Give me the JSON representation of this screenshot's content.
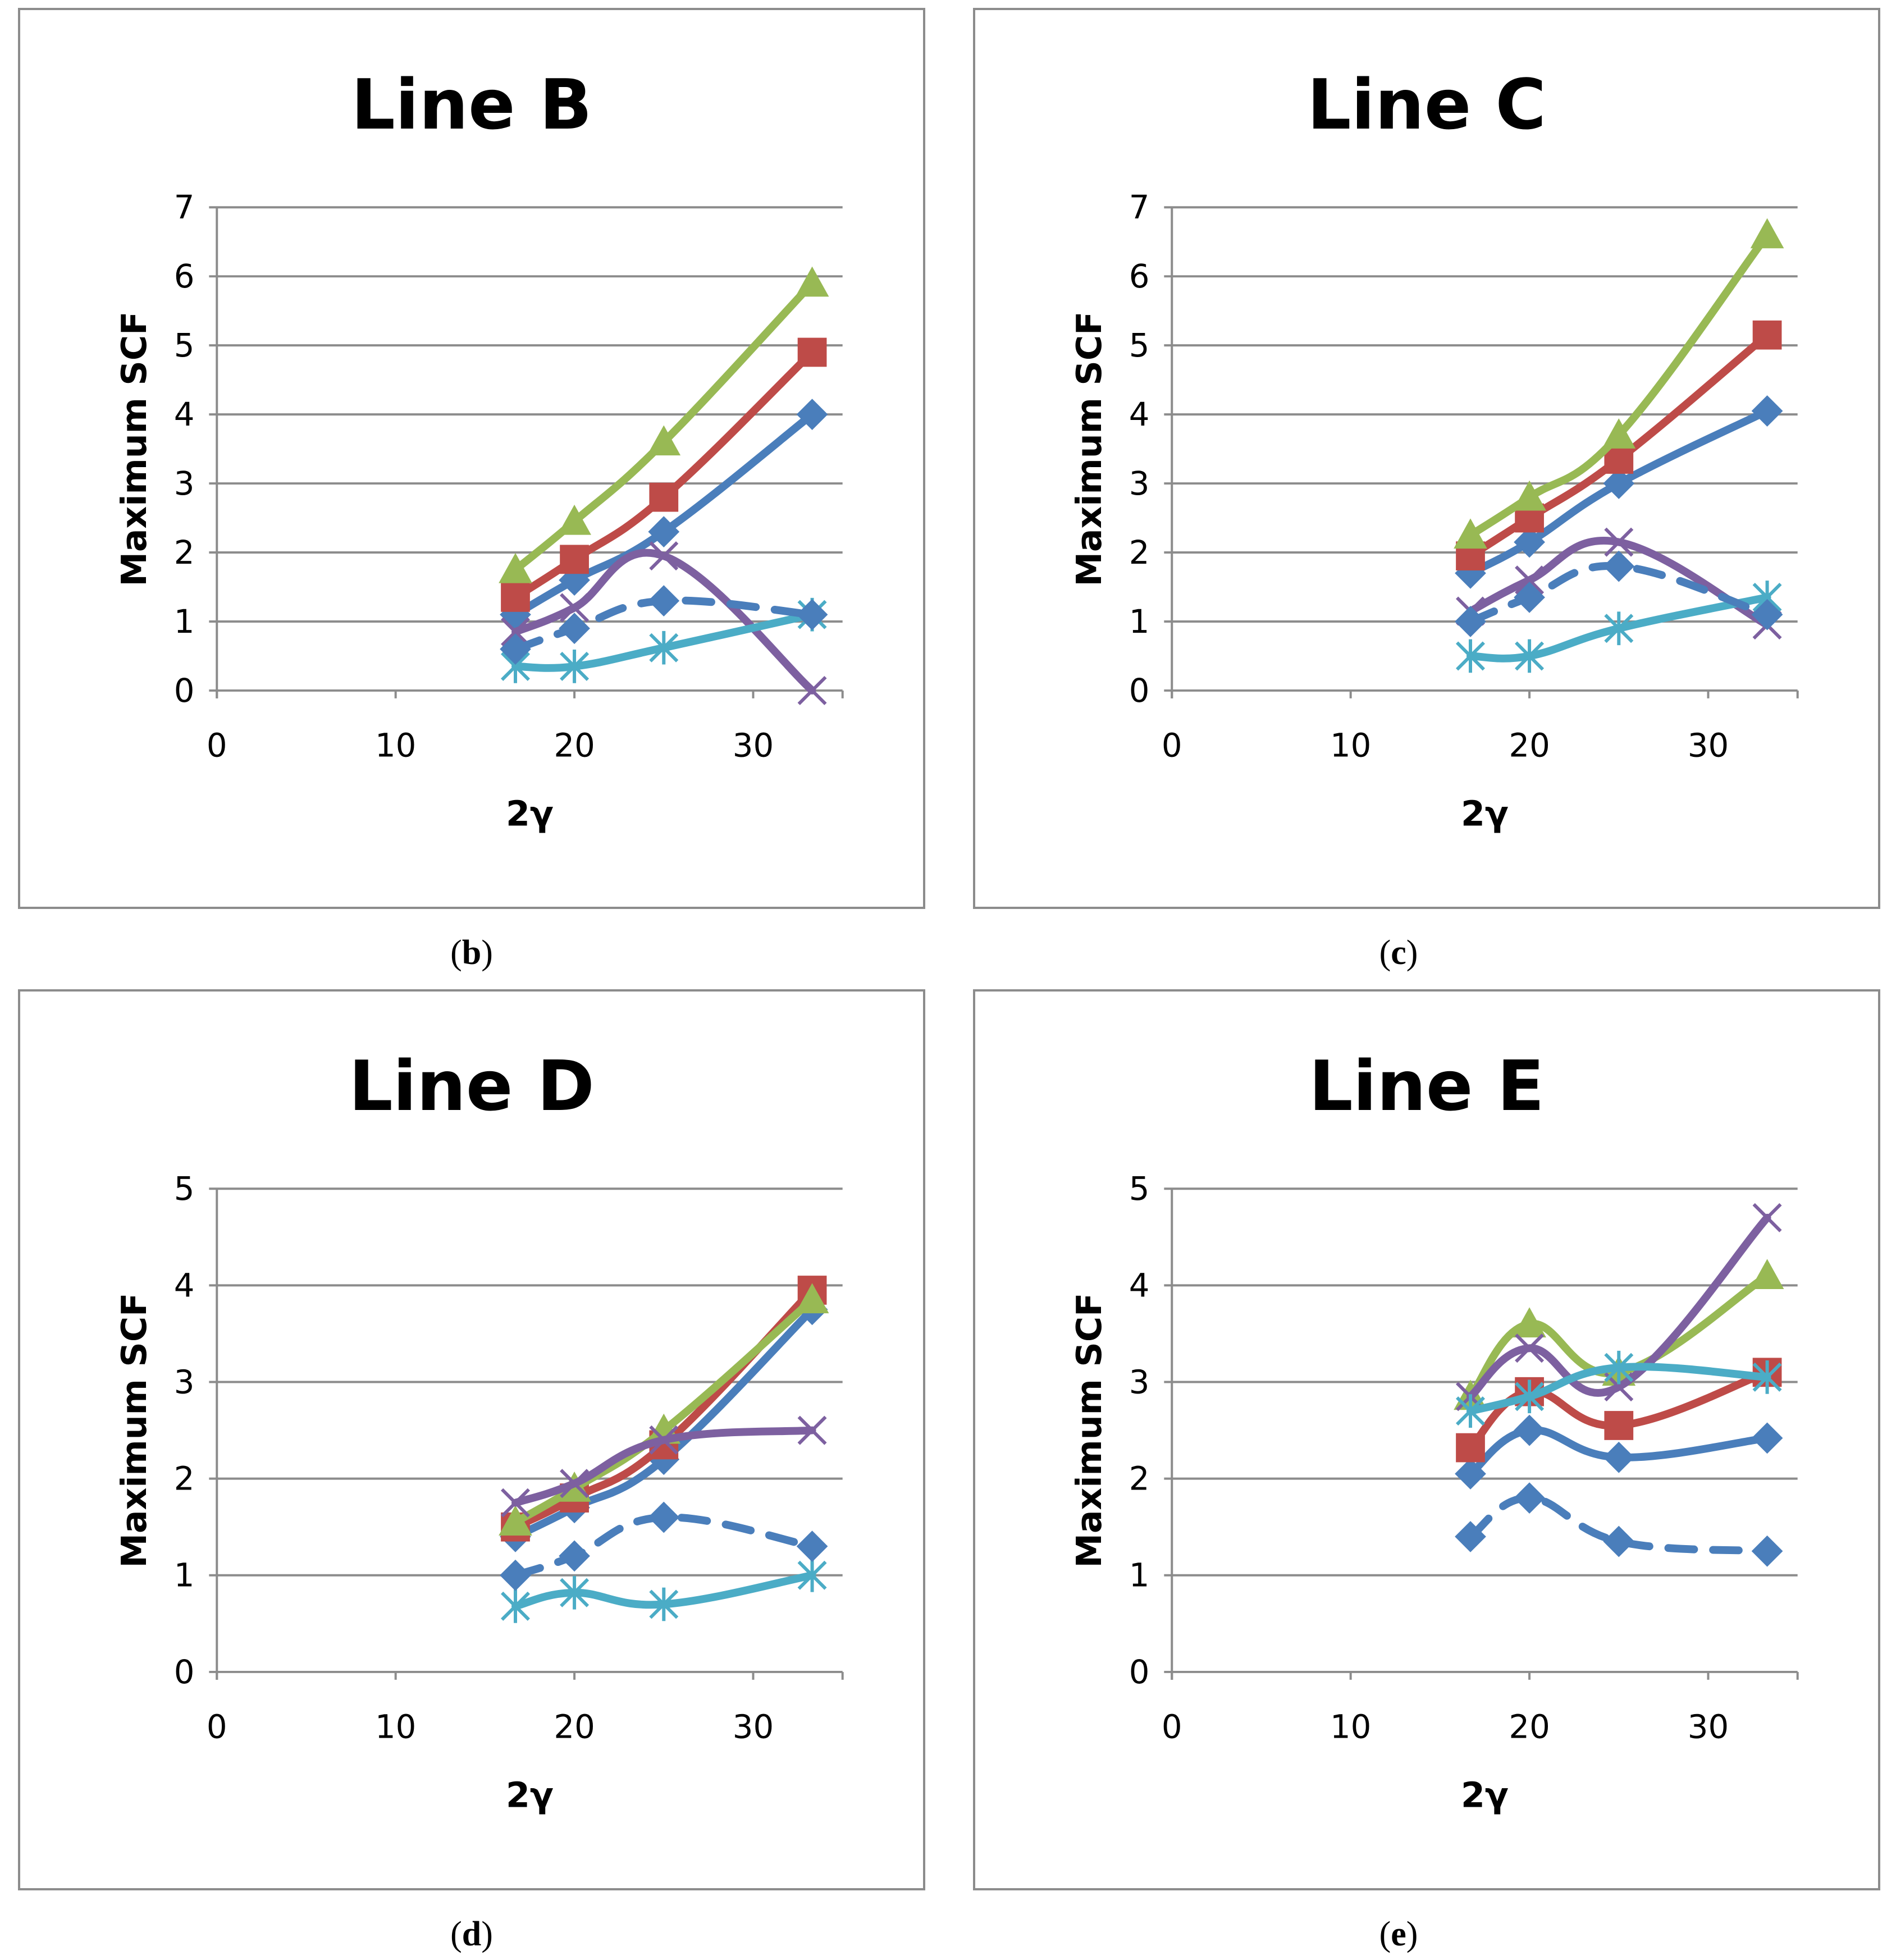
{
  "series_colors": [
    "#4a7ebb",
    "#be4b48",
    "#98b954",
    "#7d60a0",
    "#4bacc6",
    "#4a7ebb"
  ],
  "series_markers": [
    "diamond",
    "square",
    "triangle",
    "x",
    "star",
    "diamond"
  ],
  "series_styles": [
    "solid",
    "solid",
    "solid",
    "solid",
    "solid",
    "dashed"
  ],
  "chart_data": [
    {
      "type": "line",
      "panel": "b",
      "caption_letter": "b",
      "title": "Line B",
      "xlabel": "2γ",
      "ylabel": "Maximum SCF",
      "xlim": [
        0,
        35
      ],
      "ylim": [
        0,
        7
      ],
      "xticks": [
        "0",
        "10",
        "20",
        "30"
      ],
      "yticks": [
        "0",
        "1",
        "2",
        "3",
        "4",
        "5",
        "6",
        "7"
      ],
      "x": [
        16.7,
        20,
        25,
        33.3
      ],
      "series": [
        {
          "values": [
            1.1,
            1.6,
            2.3,
            4.0
          ]
        },
        {
          "values": [
            1.35,
            1.9,
            2.8,
            4.9
          ]
        },
        {
          "values": [
            1.75,
            2.45,
            3.6,
            5.9
          ]
        },
        {
          "values": [
            0.85,
            1.2,
            1.95,
            0.0
          ]
        },
        {
          "values": [
            0.35,
            0.35,
            0.62,
            1.1
          ]
        },
        {
          "values": [
            0.6,
            0.9,
            1.3,
            1.1
          ]
        }
      ]
    },
    {
      "type": "line",
      "panel": "c",
      "caption_letter": "c",
      "title": "Line C",
      "xlabel": "2γ",
      "ylabel": "Maximum SCF",
      "xlim": [
        0,
        35
      ],
      "ylim": [
        0,
        7
      ],
      "xticks": [
        "0",
        "10",
        "20",
        "30"
      ],
      "yticks": [
        "0",
        "1",
        "2",
        "3",
        "4",
        "5",
        "6",
        "7"
      ],
      "x": [
        16.7,
        20,
        25,
        33.3
      ],
      "series": [
        {
          "values": [
            1.7,
            2.15,
            3.0,
            4.05
          ]
        },
        {
          "values": [
            1.95,
            2.5,
            3.35,
            5.15
          ]
        },
        {
          "values": [
            2.25,
            2.8,
            3.7,
            6.6
          ]
        },
        {
          "values": [
            1.15,
            1.6,
            2.15,
            0.95
          ]
        },
        {
          "values": [
            0.5,
            0.5,
            0.9,
            1.35
          ]
        },
        {
          "values": [
            1.0,
            1.35,
            1.8,
            1.1
          ]
        }
      ]
    },
    {
      "type": "line",
      "panel": "d",
      "caption_letter": "d",
      "title": "Line D",
      "xlabel": "2γ",
      "ylabel": "Maximum SCF",
      "xlim": [
        0,
        35
      ],
      "ylim": [
        0,
        5
      ],
      "xticks": [
        "0",
        "10",
        "20",
        "30"
      ],
      "yticks": [
        "0",
        "1",
        "2",
        "3",
        "4",
        "5"
      ],
      "x": [
        16.7,
        20,
        25,
        33.3
      ],
      "series": [
        {
          "values": [
            1.4,
            1.7,
            2.2,
            3.75
          ]
        },
        {
          "values": [
            1.5,
            1.8,
            2.35,
            3.95
          ]
        },
        {
          "values": [
            1.55,
            1.9,
            2.5,
            3.85
          ]
        },
        {
          "values": [
            1.75,
            1.95,
            2.4,
            2.5
          ]
        },
        {
          "values": [
            0.68,
            0.82,
            0.7,
            1.0
          ]
        },
        {
          "values": [
            1.0,
            1.2,
            1.6,
            1.3
          ]
        }
      ]
    },
    {
      "type": "line",
      "panel": "e",
      "caption_letter": "e",
      "title": "Line E",
      "xlabel": "2γ",
      "ylabel": "Maximum SCF",
      "xlim": [
        0,
        35
      ],
      "ylim": [
        0,
        5
      ],
      "xticks": [
        "0",
        "10",
        "20",
        "30"
      ],
      "yticks": [
        "0",
        "1",
        "2",
        "3",
        "4",
        "5"
      ],
      "x": [
        16.7,
        20,
        25,
        33.3
      ],
      "series": [
        {
          "values": [
            2.05,
            2.5,
            2.22,
            2.42
          ]
        },
        {
          "values": [
            2.32,
            2.9,
            2.55,
            3.1
          ]
        },
        {
          "values": [
            2.85,
            3.6,
            3.1,
            4.1
          ]
        },
        {
          "values": [
            2.85,
            3.35,
            2.95,
            4.7
          ]
        },
        {
          "values": [
            2.7,
            2.85,
            3.15,
            3.05
          ]
        },
        {
          "values": [
            1.4,
            1.8,
            1.35,
            1.25
          ]
        }
      ]
    }
  ]
}
